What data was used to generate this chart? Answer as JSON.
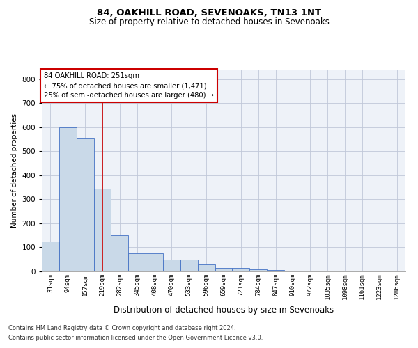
{
  "title": "84, OAKHILL ROAD, SEVENOAKS, TN13 1NT",
  "subtitle": "Size of property relative to detached houses in Sevenoaks",
  "xlabel": "Distribution of detached houses by size in Sevenoaks",
  "ylabel": "Number of detached properties",
  "footnote1": "Contains HM Land Registry data © Crown copyright and database right 2024.",
  "footnote2": "Contains public sector information licensed under the Open Government Licence v3.0.",
  "bin_labels": [
    "31sqm",
    "94sqm",
    "157sqm",
    "219sqm",
    "282sqm",
    "345sqm",
    "408sqm",
    "470sqm",
    "533sqm",
    "596sqm",
    "659sqm",
    "721sqm",
    "784sqm",
    "847sqm",
    "910sqm",
    "972sqm",
    "1035sqm",
    "1098sqm",
    "1161sqm",
    "1223sqm",
    "1286sqm"
  ],
  "bar_heights": [
    125,
    600,
    555,
    345,
    150,
    75,
    75,
    50,
    50,
    30,
    15,
    15,
    10,
    5,
    0,
    0,
    0,
    0,
    0,
    0,
    0
  ],
  "bar_color": "#c9d9e8",
  "bar_edge_color": "#4472c4",
  "red_line_x": 3.0,
  "annotation_text": "84 OAKHILL ROAD: 251sqm\n← 75% of detached houses are smaller (1,471)\n25% of semi-detached houses are larger (480) →",
  "annotation_box_color": "#ffffff",
  "annotation_box_edge": "#cc0000",
  "grid_color": "#c0c8d8",
  "background_color": "#eef2f8",
  "ylim": [
    0,
    840
  ],
  "yticks": [
    0,
    100,
    200,
    300,
    400,
    500,
    600,
    700,
    800
  ]
}
